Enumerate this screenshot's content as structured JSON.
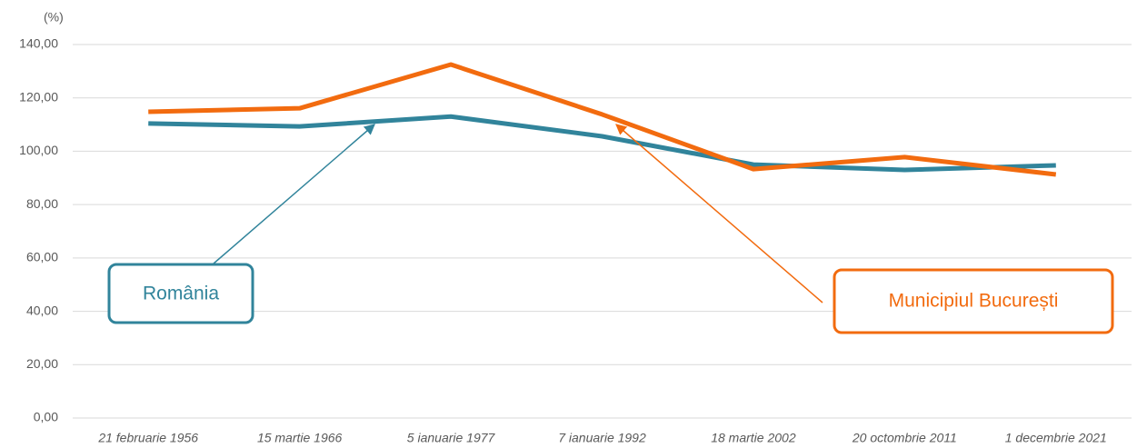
{
  "chart_data": {
    "type": "line",
    "y_label": "(%)",
    "categories": [
      "21 februarie 1956",
      "15 martie 1966",
      "5 ianuarie 1977",
      "7 ianuarie 1992",
      "18 martie 2002",
      "20 octombrie 2011",
      "1 decembrie 2021"
    ],
    "series": [
      {
        "name": "România",
        "color": "#31849b",
        "values": [
          110.4,
          109.3,
          113.0,
          105.6,
          95.0,
          93.0,
          94.7
        ]
      },
      {
        "name": "Municipiul București",
        "color": "#f26b0f",
        "values": [
          114.8,
          116.1,
          132.5,
          113.8,
          93.3,
          97.8,
          91.3
        ]
      }
    ],
    "ylim": [
      0,
      140
    ],
    "yticks": [
      {
        "value": 0,
        "label": "0,00"
      },
      {
        "value": 20,
        "label": "20,00"
      },
      {
        "value": 40,
        "label": "40,00"
      },
      {
        "value": 60,
        "label": "60,00"
      },
      {
        "value": 80,
        "label": "80,00"
      },
      {
        "value": 100,
        "label": "100,00"
      },
      {
        "value": 120,
        "label": "120,00"
      },
      {
        "value": 140,
        "label": "140,00"
      }
    ],
    "grid": true
  }
}
